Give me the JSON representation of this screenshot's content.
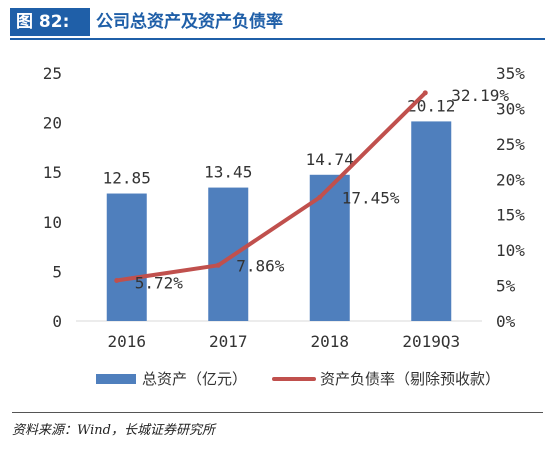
{
  "header": {
    "figure_label": "图 82:",
    "title": "公司总资产及资产负债率"
  },
  "source": "资料来源：Wind，长城证券研究所",
  "colors": {
    "bar": "#4f7fbd",
    "line": "#c0504d",
    "accent": "#1f5fa8"
  },
  "chart_data": {
    "type": "bar+line",
    "categories": [
      "2016",
      "2017",
      "2018",
      "2019Q3"
    ],
    "series": [
      {
        "name": "总资产（亿元）",
        "type": "bar",
        "axis": "left",
        "values": [
          12.85,
          13.45,
          14.74,
          20.12
        ],
        "labels": [
          "12.85",
          "13.45",
          "14.74",
          "20.12"
        ]
      },
      {
        "name": "资产负债率（剔除预收款）",
        "type": "line",
        "axis": "right",
        "values": [
          5.72,
          7.86,
          17.45,
          32.19
        ],
        "labels": [
          "5.72%",
          "7.86%",
          "17.45%",
          "32.19%"
        ]
      }
    ],
    "left_axis": {
      "ylim": [
        0,
        25
      ],
      "ticks": [
        "0",
        "5",
        "10",
        "15",
        "20",
        "25"
      ]
    },
    "right_axis": {
      "ylim": [
        0,
        35
      ],
      "ticks": [
        "0%",
        "5%",
        "10%",
        "15%",
        "20%",
        "25%",
        "30%",
        "35%"
      ]
    },
    "legend_position": "bottom",
    "grid": false
  }
}
